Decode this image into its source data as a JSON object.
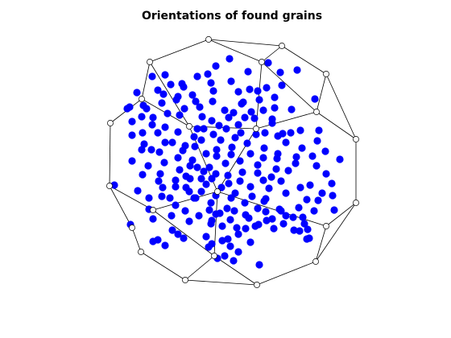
{
  "chart_data": {
    "type": "scatter",
    "title": "Orientations of found grains",
    "xlabel": "",
    "ylabel": "",
    "axes_visible": false,
    "grid": false,
    "legend": "none",
    "colors": {
      "points": "#0000ff",
      "wireframe": "#000000",
      "vertex_fill": "#ffffff",
      "background": "#ffffff"
    },
    "wireframe": {
      "vertices": [
        [
          259,
          49
        ],
        [
          350,
          57
        ],
        [
          186,
          77
        ],
        [
          325,
          77
        ],
        [
          405,
          92
        ],
        [
          176,
          123
        ],
        [
          393,
          139
        ],
        [
          137,
          153
        ],
        [
          318,
          160
        ],
        [
          235,
          157
        ],
        [
          442,
          173
        ],
        [
          136,
          231
        ],
        [
          270,
          238
        ],
        [
          442,
          252
        ],
        [
          164,
          283
        ],
        [
          405,
          281
        ],
        [
          190,
          261
        ],
        [
          266,
          318
        ],
        [
          392,
          325
        ],
        [
          175,
          313
        ],
        [
          230,
          348
        ],
        [
          319,
          354
        ]
      ],
      "edges": [
        [
          0,
          1
        ],
        [
          0,
          2
        ],
        [
          0,
          3
        ],
        [
          1,
          3
        ],
        [
          1,
          4
        ],
        [
          2,
          5
        ],
        [
          2,
          9
        ],
        [
          3,
          6
        ],
        [
          3,
          8
        ],
        [
          4,
          6
        ],
        [
          4,
          10
        ],
        [
          5,
          7
        ],
        [
          5,
          9
        ],
        [
          6,
          8
        ],
        [
          6,
          10
        ],
        [
          7,
          11
        ],
        [
          8,
          9
        ],
        [
          8,
          12
        ],
        [
          9,
          12
        ],
        [
          10,
          13
        ],
        [
          11,
          14
        ],
        [
          11,
          16
        ],
        [
          12,
          16
        ],
        [
          12,
          17
        ],
        [
          12,
          15
        ],
        [
          13,
          15
        ],
        [
          13,
          18
        ],
        [
          14,
          19
        ],
        [
          16,
          17
        ],
        [
          15,
          18
        ],
        [
          17,
          20
        ],
        [
          17,
          21
        ],
        [
          18,
          21
        ],
        [
          19,
          20
        ],
        [
          20,
          21
        ]
      ]
    },
    "points": [
      [
        189,
        95
      ],
      [
        212,
        105
      ],
      [
        245,
        95
      ],
      [
        268,
        82
      ],
      [
        285,
        73
      ],
      [
        308,
        89
      ],
      [
        333,
        78
      ],
      [
        348,
        90
      ],
      [
        369,
        87
      ],
      [
        178,
        131
      ],
      [
        196,
        112
      ],
      [
        228,
        108
      ],
      [
        239,
        118
      ],
      [
        262,
        103
      ],
      [
        287,
        101
      ],
      [
        310,
        111
      ],
      [
        331,
        109
      ],
      [
        350,
        106
      ],
      [
        158,
        135
      ],
      [
        176,
        145
      ],
      [
        201,
        128
      ],
      [
        219,
        124
      ],
      [
        248,
        133
      ],
      [
        264,
        126
      ],
      [
        279,
        137
      ],
      [
        300,
        129
      ],
      [
        322,
        124
      ],
      [
        341,
        134
      ],
      [
        362,
        136
      ],
      [
        391,
        123
      ],
      [
        164,
        151
      ],
      [
        164,
        168
      ],
      [
        189,
        155
      ],
      [
        205,
        158
      ],
      [
        221,
        164
      ],
      [
        245,
        160
      ],
      [
        263,
        150
      ],
      [
        281,
        160
      ],
      [
        296,
        155
      ],
      [
        316,
        147
      ],
      [
        338,
        153
      ],
      [
        351,
        166
      ],
      [
        373,
        162
      ],
      [
        396,
        162
      ],
      [
        188,
        186
      ],
      [
        205,
        177
      ],
      [
        227,
        187
      ],
      [
        250,
        174
      ],
      [
        269,
        186
      ],
      [
        288,
        183
      ],
      [
        307,
        178
      ],
      [
        328,
        184
      ],
      [
        355,
        177
      ],
      [
        375,
        184
      ],
      [
        404,
        188
      ],
      [
        184,
        206
      ],
      [
        204,
        202
      ],
      [
        223,
        211
      ],
      [
        239,
        199
      ],
      [
        260,
        208
      ],
      [
        280,
        203
      ],
      [
        298,
        200
      ],
      [
        320,
        205
      ],
      [
        343,
        210
      ],
      [
        367,
        203
      ],
      [
        393,
        206
      ],
      [
        422,
        198
      ],
      [
        142,
        230
      ],
      [
        177,
        217
      ],
      [
        197,
        225
      ],
      [
        218,
        232
      ],
      [
        235,
        238
      ],
      [
        256,
        229
      ],
      [
        275,
        233
      ],
      [
        292,
        240
      ],
      [
        311,
        232
      ],
      [
        334,
        234
      ],
      [
        355,
        240
      ],
      [
        381,
        248
      ],
      [
        413,
        243
      ],
      [
        185,
        260
      ],
      [
        201,
        244
      ],
      [
        218,
        255
      ],
      [
        241,
        246
      ],
      [
        262,
        252
      ],
      [
        282,
        259
      ],
      [
        304,
        252
      ],
      [
        328,
        250
      ],
      [
        347,
        260
      ],
      [
        371,
        258
      ],
      [
        390,
        262
      ],
      [
        415,
        261
      ],
      [
        162,
        279
      ],
      [
        190,
        272
      ],
      [
        213,
        268
      ],
      [
        235,
        275
      ],
      [
        263,
        274
      ],
      [
        286,
        273
      ],
      [
        305,
        267
      ],
      [
        321,
        279
      ],
      [
        340,
        284
      ],
      [
        364,
        270
      ],
      [
        382,
        285
      ],
      [
        196,
        298
      ],
      [
        221,
        291
      ],
      [
        263,
        303
      ],
      [
        283,
        297
      ],
      [
        296,
        291
      ],
      [
        270,
        321
      ],
      [
        322,
        329
      ],
      [
        381,
        297
      ],
      [
        205,
        305
      ],
      [
        259,
        307
      ],
      [
        179,
        179
      ],
      [
        198,
        189
      ],
      [
        208,
        141
      ],
      [
        190,
        146
      ],
      [
        223,
        143
      ],
      [
        241,
        170
      ],
      [
        245,
        208
      ],
      [
        231,
        219
      ],
      [
        263,
        222
      ],
      [
        269,
        194
      ],
      [
        301,
        214
      ],
      [
        320,
        215
      ],
      [
        330,
        247
      ],
      [
        262,
        278
      ],
      [
        283,
        218
      ],
      [
        299,
        165
      ],
      [
        318,
        167
      ],
      [
        344,
        197
      ],
      [
        358,
        212
      ],
      [
        368,
        195
      ],
      [
        373,
        233
      ],
      [
        385,
        230
      ],
      [
        405,
        216
      ],
      [
        400,
        240
      ],
      [
        230,
        262
      ],
      [
        247,
        268
      ],
      [
        276,
        281
      ],
      [
        294,
        283
      ],
      [
        286,
        306
      ],
      [
        311,
        301
      ],
      [
        317,
        281
      ],
      [
        331,
        274
      ],
      [
        349,
        262
      ],
      [
        365,
        286
      ],
      [
        378,
        278
      ],
      [
        205,
        93
      ],
      [
        226,
        104
      ],
      [
        258,
        92
      ],
      [
        265,
        113
      ],
      [
        296,
        114
      ],
      [
        327,
        137
      ],
      [
        338,
        148
      ],
      [
        312,
        139
      ],
      [
        284,
        146
      ],
      [
        251,
        145
      ],
      [
        229,
        135
      ],
      [
        214,
        177
      ],
      [
        196,
        165
      ],
      [
        177,
        165
      ],
      [
        164,
        200
      ],
      [
        171,
        237
      ],
      [
        199,
        216
      ],
      [
        202,
        233
      ],
      [
        211,
        246
      ],
      [
        185,
        246
      ],
      [
        231,
        233
      ],
      [
        250,
        238
      ],
      [
        260,
        261
      ],
      [
        242,
        182
      ],
      [
        230,
        181
      ],
      [
        256,
        191
      ],
      [
        274,
        174
      ],
      [
        292,
        171
      ],
      [
        311,
        191
      ],
      [
        327,
        196
      ],
      [
        345,
        191
      ],
      [
        349,
        225
      ],
      [
        337,
        220
      ],
      [
        327,
        224
      ],
      [
        284,
        228
      ],
      [
        268,
        243
      ],
      [
        287,
        246
      ],
      [
        298,
        225
      ],
      [
        313,
        244
      ],
      [
        320,
        259
      ],
      [
        341,
        121
      ],
      [
        320,
        113
      ],
      [
        302,
        127
      ],
      [
        243,
        126
      ],
      [
        221,
        120
      ],
      [
        203,
        117
      ],
      [
        182,
        135
      ],
      [
        170,
        115
      ],
      [
        161,
        133
      ],
      [
        176,
        186
      ],
      [
        253,
        160
      ],
      [
        272,
        156
      ],
      [
        265,
        167
      ],
      [
        287,
        192
      ],
      [
        304,
        146
      ],
      [
        290,
        140
      ],
      [
        329,
        165
      ],
      [
        345,
        169
      ],
      [
        361,
        165
      ],
      [
        388,
        194
      ],
      [
        394,
        175
      ],
      [
        412,
        228
      ],
      [
        221,
        196
      ],
      [
        236,
        206
      ],
      [
        253,
        213
      ],
      [
        268,
        216
      ],
      [
        250,
        222
      ],
      [
        236,
        222
      ],
      [
        218,
        224
      ],
      [
        243,
        246
      ],
      [
        273,
        265
      ],
      [
        291,
        262
      ],
      [
        309,
        271
      ],
      [
        330,
        263
      ],
      [
        355,
        268
      ],
      [
        376,
        270
      ],
      [
        395,
        249
      ],
      [
        190,
        300
      ],
      [
        214,
        286
      ],
      [
        228,
        296
      ],
      [
        256,
        294
      ],
      [
        276,
        299
      ],
      [
        296,
        313
      ],
      [
        290,
        324
      ],
      [
        279,
        318
      ],
      [
        268,
        266
      ],
      [
        305,
        284
      ],
      [
        338,
        272
      ],
      [
        352,
        278
      ],
      [
        372,
        287
      ],
      [
        384,
        296
      ]
    ]
  }
}
